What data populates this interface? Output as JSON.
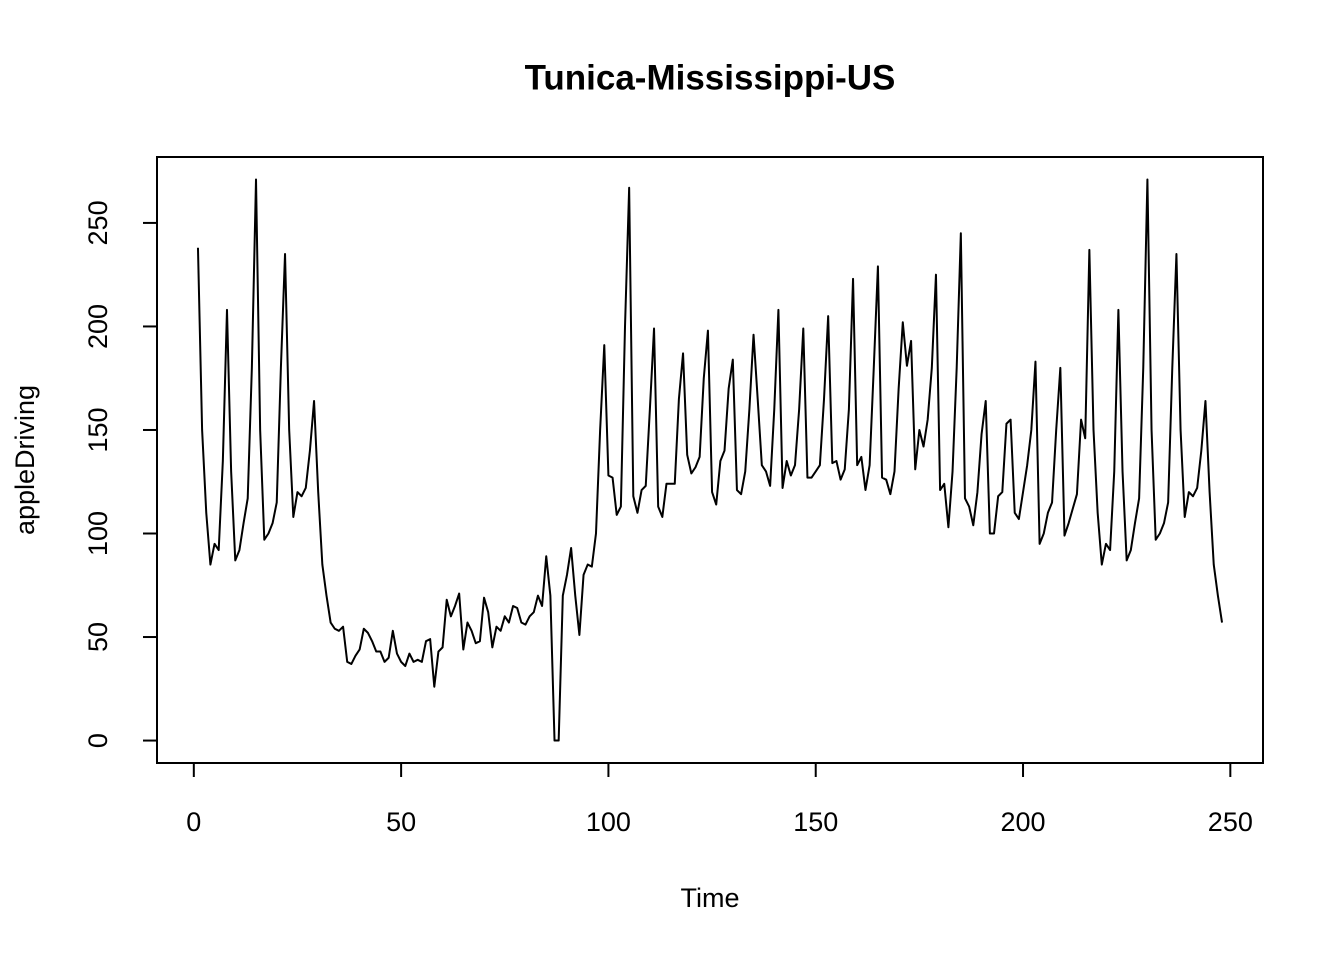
{
  "chart_data": {
    "type": "line",
    "title": "Tunica-Mississippi-US",
    "x_label": "Time",
    "y_label": "appleDriving",
    "x": [
      1,
      2,
      3,
      4,
      5,
      6,
      7,
      8,
      9,
      10,
      11,
      12,
      13,
      14,
      15,
      16,
      17,
      18,
      19,
      20,
      21,
      22,
      23,
      24,
      25,
      26,
      27,
      28,
      29,
      30,
      31,
      32,
      33,
      34,
      35,
      36,
      37,
      38,
      39,
      40,
      41,
      42,
      43,
      44,
      45,
      46,
      47,
      48,
      49,
      50,
      51,
      52,
      53,
      54,
      55,
      56,
      57,
      58,
      59,
      60,
      61,
      62,
      63,
      64,
      65,
      66,
      67,
      68,
      69,
      70,
      71,
      72,
      73,
      74,
      75,
      76,
      77,
      78,
      79,
      80,
      81,
      82,
      83,
      84,
      85,
      86,
      87,
      88,
      89,
      90,
      91,
      92,
      93,
      94,
      95,
      96,
      97,
      98,
      99,
      100,
      101,
      102,
      103,
      104,
      105,
      106,
      107,
      108,
      109,
      110,
      111,
      112,
      113,
      114,
      115,
      116,
      117,
      118,
      119,
      120,
      121,
      122,
      123,
      124,
      125,
      126,
      127,
      128,
      129,
      130,
      131,
      132,
      133,
      134,
      135,
      136,
      137,
      138,
      139,
      140,
      141,
      142,
      143,
      144,
      145,
      146,
      147,
      148,
      149,
      150,
      151,
      152,
      153,
      154,
      155,
      156,
      157,
      158,
      159,
      160,
      161,
      162,
      163,
      164,
      165,
      166,
      167,
      168,
      169,
      170,
      171,
      172,
      173,
      174,
      175,
      176,
      177,
      178,
      179,
      180,
      181,
      182,
      183,
      184,
      185,
      186,
      187,
      188,
      189,
      190,
      191,
      192,
      193,
      194,
      195,
      196,
      197,
      198,
      199,
      200,
      201,
      202,
      203,
      204,
      205,
      206,
      207,
      208,
      209,
      210,
      211,
      212,
      213,
      214,
      215,
      216,
      217,
      218,
      219,
      220,
      221,
      222,
      223,
      224,
      225,
      226,
      227,
      228,
      229,
      230,
      231,
      232,
      233,
      234,
      235,
      236,
      237,
      238,
      239,
      240,
      241,
      242,
      243,
      244,
      245,
      246,
      247,
      248
    ],
    "series": [
      {
        "name": "appleDriving",
        "color": "#000000",
        "values": [
          238,
          150,
          110,
          85,
          95,
          92,
          135,
          208,
          130,
          87,
          92,
          105,
          117,
          180,
          271,
          150,
          97,
          100,
          105,
          115,
          180,
          235,
          150,
          108,
          120,
          118,
          122,
          140,
          164,
          120,
          85,
          70,
          57,
          54,
          53,
          55,
          38,
          37,
          41,
          44,
          54,
          52,
          48,
          43,
          43,
          38,
          40,
          53,
          42,
          38,
          36,
          42,
          38,
          39,
          38,
          48,
          49,
          26,
          43,
          45,
          68,
          60,
          65,
          71,
          44,
          57,
          53,
          47,
          48,
          69,
          62,
          45,
          55,
          53,
          60,
          57,
          65,
          64,
          57,
          56,
          60,
          62,
          70,
          65,
          89,
          70,
          0,
          0,
          70,
          80,
          93,
          70,
          51,
          80,
          85,
          84,
          100,
          150,
          191,
          128,
          127,
          109,
          113,
          200,
          267,
          118,
          110,
          121,
          123,
          160,
          199,
          113,
          108,
          124,
          124,
          124,
          165,
          187,
          138,
          129,
          132,
          137,
          175,
          198,
          120,
          114,
          135,
          140,
          170,
          184,
          121,
          119,
          130,
          160,
          196,
          165,
          133,
          130,
          123,
          160,
          208,
          122,
          135,
          128,
          133,
          160,
          199,
          127,
          127,
          130,
          133,
          165,
          205,
          134,
          135,
          126,
          131,
          160,
          223,
          133,
          137,
          121,
          133,
          180,
          229,
          127,
          126,
          119,
          130,
          170,
          202,
          181,
          193,
          131,
          150,
          142,
          155,
          180,
          225,
          121,
          124,
          103,
          130,
          180,
          245,
          117,
          113,
          104,
          120,
          148,
          164,
          100,
          100,
          118,
          120,
          153,
          155,
          110,
          107,
          120,
          133,
          150,
          183,
          95,
          100,
          110,
          115,
          150,
          180,
          99,
          105,
          112,
          119,
          155,
          146,
          237,
          150,
          110,
          85,
          95,
          92,
          130,
          208,
          130,
          87,
          92,
          105,
          117,
          180,
          271,
          150,
          97,
          100,
          105,
          115,
          180,
          235,
          150,
          108,
          120,
          118,
          122,
          140,
          164,
          120,
          85,
          70,
          57
        ]
      }
    ],
    "xlim": [
      -8.88,
      257.88
    ],
    "ylim": [
      -10.84,
      281.84
    ],
    "xticks": [
      0,
      50,
      100,
      150,
      200,
      250
    ],
    "yticks": [
      0,
      50,
      100,
      150,
      200,
      250
    ],
    "grid": false
  }
}
